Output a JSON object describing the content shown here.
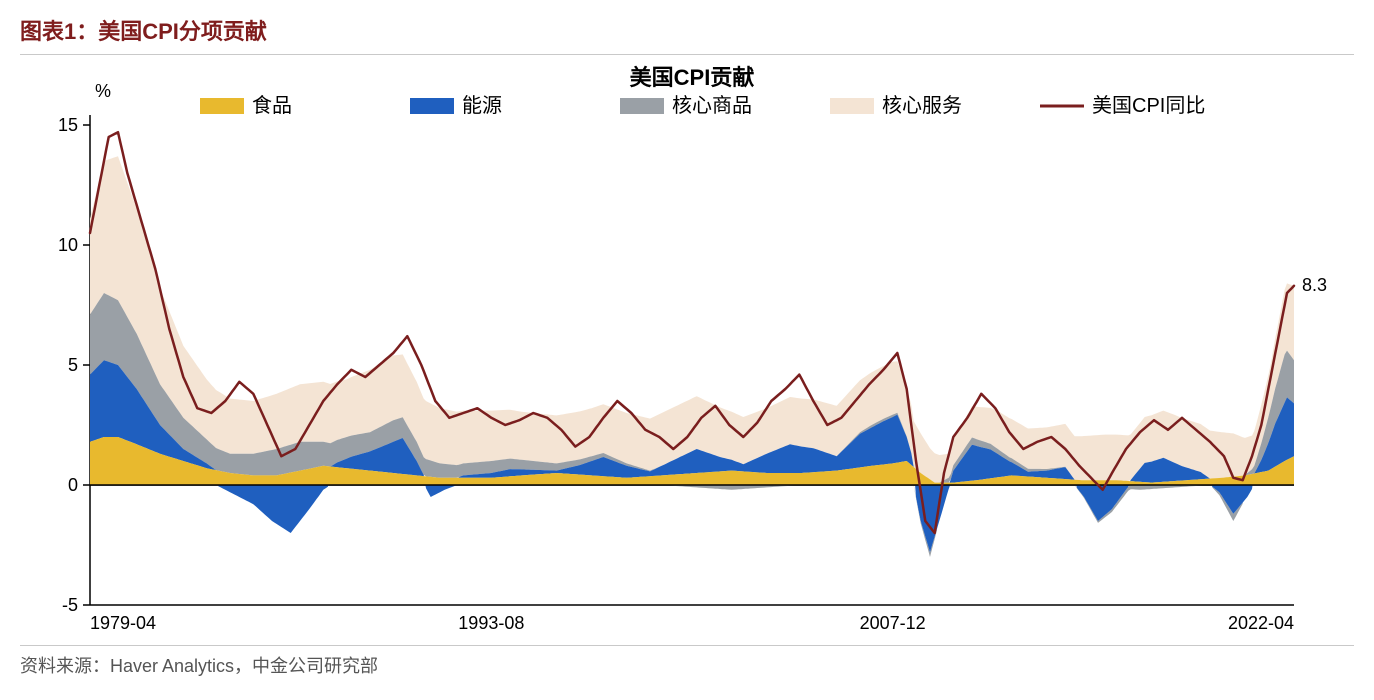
{
  "figure": {
    "title": "图表1：美国CPI分项贡献",
    "title_color": "#7f1d1d",
    "source": "资料来源：Haver Analytics，中金公司研究部"
  },
  "chart": {
    "type": "stacked-area-with-line",
    "title": "美国CPI贡献",
    "y_unit_label": "%",
    "ylim": [
      -5,
      15
    ],
    "yticks": [
      -5,
      0,
      5,
      10,
      15
    ],
    "x_start": "1979-04",
    "x_end": "2022-04",
    "x_tick_labels": [
      "1979-04",
      "1993-08",
      "2007-12",
      "2022-04"
    ],
    "x_tick_positions": [
      0,
      172,
      344,
      516
    ],
    "n_points": 517,
    "end_label": "8.3",
    "background_color": "#ffffff",
    "axis_color": "#000000",
    "tick_color": "#000000",
    "legend": {
      "items": [
        {
          "key": "food",
          "label": "食品",
          "swatch": "area",
          "color": "#e8b92e"
        },
        {
          "key": "energy",
          "label": "能源",
          "swatch": "area",
          "color": "#1f5fbf"
        },
        {
          "key": "core_goods",
          "label": "核心商品",
          "swatch": "area",
          "color": "#9aa0a6"
        },
        {
          "key": "core_services",
          "label": "核心服务",
          "swatch": "area",
          "color": "#f4e4d4"
        },
        {
          "key": "cpi_line",
          "label": "美国CPI同比",
          "swatch": "line",
          "color": "#7a1e1e"
        }
      ],
      "font_size": 20
    },
    "series": {
      "food": {
        "color": "#e8b92e",
        "breakpoints": [
          [
            0,
            1.8
          ],
          [
            6,
            2.0
          ],
          [
            12,
            2.0
          ],
          [
            20,
            1.7
          ],
          [
            30,
            1.3
          ],
          [
            40,
            1.0
          ],
          [
            50,
            0.7
          ],
          [
            60,
            0.5
          ],
          [
            70,
            0.4
          ],
          [
            80,
            0.4
          ],
          [
            90,
            0.6
          ],
          [
            100,
            0.8
          ],
          [
            110,
            0.7
          ],
          [
            120,
            0.6
          ],
          [
            130,
            0.5
          ],
          [
            140,
            0.4
          ],
          [
            150,
            0.3
          ],
          [
            160,
            0.3
          ],
          [
            172,
            0.3
          ],
          [
            185,
            0.4
          ],
          [
            200,
            0.5
          ],
          [
            215,
            0.4
          ],
          [
            230,
            0.3
          ],
          [
            245,
            0.4
          ],
          [
            260,
            0.5
          ],
          [
            275,
            0.6
          ],
          [
            290,
            0.5
          ],
          [
            305,
            0.5
          ],
          [
            320,
            0.6
          ],
          [
            335,
            0.8
          ],
          [
            344,
            0.9
          ],
          [
            350,
            1.0
          ],
          [
            356,
            0.5
          ],
          [
            362,
            0.1
          ],
          [
            370,
            0.1
          ],
          [
            380,
            0.2
          ],
          [
            395,
            0.4
          ],
          [
            410,
            0.3
          ],
          [
            425,
            0.2
          ],
          [
            440,
            0.2
          ],
          [
            455,
            0.1
          ],
          [
            470,
            0.2
          ],
          [
            485,
            0.3
          ],
          [
            495,
            0.4
          ],
          [
            505,
            0.6
          ],
          [
            512,
            1.0
          ],
          [
            516,
            1.2
          ]
        ]
      },
      "energy": {
        "color": "#1f5fbf",
        "breakpoints": [
          [
            0,
            2.8
          ],
          [
            6,
            3.2
          ],
          [
            12,
            3.0
          ],
          [
            20,
            2.3
          ],
          [
            30,
            1.2
          ],
          [
            40,
            0.5
          ],
          [
            50,
            0.2
          ],
          [
            60,
            -0.3
          ],
          [
            70,
            -0.8
          ],
          [
            78,
            -1.5
          ],
          [
            86,
            -2.0
          ],
          [
            94,
            -1.0
          ],
          [
            100,
            -0.2
          ],
          [
            106,
            0.2
          ],
          [
            112,
            0.5
          ],
          [
            120,
            0.8
          ],
          [
            128,
            1.2
          ],
          [
            134,
            1.5
          ],
          [
            140,
            0.6
          ],
          [
            146,
            -0.5
          ],
          [
            152,
            -0.2
          ],
          [
            160,
            0.1
          ],
          [
            172,
            0.2
          ],
          [
            180,
            0.3
          ],
          [
            190,
            0.2
          ],
          [
            200,
            0.1
          ],
          [
            210,
            0.4
          ],
          [
            220,
            0.8
          ],
          [
            230,
            0.5
          ],
          [
            240,
            0.2
          ],
          [
            250,
            0.6
          ],
          [
            260,
            1.0
          ],
          [
            270,
            0.6
          ],
          [
            280,
            0.3
          ],
          [
            290,
            0.8
          ],
          [
            300,
            1.2
          ],
          [
            310,
            1.0
          ],
          [
            320,
            0.6
          ],
          [
            330,
            1.4
          ],
          [
            340,
            1.8
          ],
          [
            346,
            2.0
          ],
          [
            352,
            0.5
          ],
          [
            356,
            -1.5
          ],
          [
            360,
            -2.8
          ],
          [
            364,
            -1.5
          ],
          [
            370,
            0.5
          ],
          [
            378,
            1.5
          ],
          [
            386,
            1.2
          ],
          [
            394,
            0.6
          ],
          [
            402,
            0.2
          ],
          [
            410,
            0.3
          ],
          [
            418,
            0.5
          ],
          [
            426,
            -0.5
          ],
          [
            432,
            -1.5
          ],
          [
            438,
            -1.0
          ],
          [
            444,
            -0.2
          ],
          [
            452,
            0.8
          ],
          [
            460,
            1.0
          ],
          [
            468,
            0.6
          ],
          [
            476,
            0.3
          ],
          [
            484,
            -0.3
          ],
          [
            490,
            -1.2
          ],
          [
            496,
            -0.5
          ],
          [
            502,
            0.5
          ],
          [
            508,
            1.8
          ],
          [
            513,
            2.6
          ],
          [
            516,
            2.2
          ]
        ]
      },
      "core_goods": {
        "color": "#9aa0a6",
        "breakpoints": [
          [
            0,
            2.5
          ],
          [
            6,
            2.8
          ],
          [
            12,
            2.7
          ],
          [
            20,
            2.3
          ],
          [
            30,
            1.7
          ],
          [
            40,
            1.3
          ],
          [
            50,
            1.0
          ],
          [
            60,
            0.8
          ],
          [
            70,
            0.9
          ],
          [
            80,
            1.1
          ],
          [
            90,
            1.2
          ],
          [
            100,
            1.0
          ],
          [
            110,
            0.9
          ],
          [
            120,
            0.8
          ],
          [
            130,
            0.9
          ],
          [
            140,
            0.8
          ],
          [
            150,
            0.6
          ],
          [
            160,
            0.5
          ],
          [
            172,
            0.5
          ],
          [
            185,
            0.4
          ],
          [
            200,
            0.3
          ],
          [
            215,
            0.2
          ],
          [
            230,
            0.1
          ],
          [
            245,
            0.0
          ],
          [
            260,
            -0.1
          ],
          [
            275,
            -0.2
          ],
          [
            290,
            -0.1
          ],
          [
            305,
            0.0
          ],
          [
            320,
            0.0
          ],
          [
            335,
            0.1
          ],
          [
            344,
            0.1
          ],
          [
            352,
            0.0
          ],
          [
            360,
            -0.2
          ],
          [
            368,
            0.2
          ],
          [
            378,
            0.3
          ],
          [
            390,
            0.2
          ],
          [
            405,
            0.1
          ],
          [
            420,
            0.0
          ],
          [
            435,
            -0.1
          ],
          [
            450,
            -0.2
          ],
          [
            465,
            -0.1
          ],
          [
            480,
            0.0
          ],
          [
            490,
            -0.3
          ],
          [
            498,
            0.2
          ],
          [
            506,
            1.2
          ],
          [
            512,
            2.0
          ],
          [
            516,
            1.8
          ]
        ]
      },
      "core_services": {
        "color": "#f4e4d4",
        "breakpoints": [
          [
            0,
            4.0
          ],
          [
            6,
            5.5
          ],
          [
            12,
            6.0
          ],
          [
            20,
            5.2
          ],
          [
            30,
            4.0
          ],
          [
            40,
            3.0
          ],
          [
            50,
            2.5
          ],
          [
            60,
            2.3
          ],
          [
            70,
            2.2
          ],
          [
            80,
            2.3
          ],
          [
            90,
            2.4
          ],
          [
            100,
            2.5
          ],
          [
            110,
            2.4
          ],
          [
            120,
            2.6
          ],
          [
            130,
            2.7
          ],
          [
            140,
            2.5
          ],
          [
            150,
            2.3
          ],
          [
            160,
            2.2
          ],
          [
            172,
            2.1
          ],
          [
            185,
            2.0
          ],
          [
            200,
            2.0
          ],
          [
            215,
            2.0
          ],
          [
            230,
            2.1
          ],
          [
            245,
            2.2
          ],
          [
            260,
            2.2
          ],
          [
            275,
            2.0
          ],
          [
            290,
            1.9
          ],
          [
            305,
            2.0
          ],
          [
            320,
            2.1
          ],
          [
            335,
            2.2
          ],
          [
            344,
            2.2
          ],
          [
            352,
            2.0
          ],
          [
            360,
            1.3
          ],
          [
            368,
            1.0
          ],
          [
            378,
            1.3
          ],
          [
            390,
            1.6
          ],
          [
            405,
            1.7
          ],
          [
            420,
            1.8
          ],
          [
            435,
            1.9
          ],
          [
            450,
            1.9
          ],
          [
            465,
            2.0
          ],
          [
            480,
            2.0
          ],
          [
            490,
            1.8
          ],
          [
            498,
            1.4
          ],
          [
            506,
            1.8
          ],
          [
            512,
            2.7
          ],
          [
            516,
            3.1
          ]
        ]
      },
      "cpi_line": {
        "color": "#7a1e1e",
        "width": 2.5,
        "breakpoints": [
          [
            0,
            10.5
          ],
          [
            4,
            12.5
          ],
          [
            8,
            14.5
          ],
          [
            12,
            14.7
          ],
          [
            16,
            13.0
          ],
          [
            22,
            11.0
          ],
          [
            28,
            9.0
          ],
          [
            34,
            6.5
          ],
          [
            40,
            4.5
          ],
          [
            46,
            3.2
          ],
          [
            52,
            3.0
          ],
          [
            58,
            3.5
          ],
          [
            64,
            4.3
          ],
          [
            70,
            3.8
          ],
          [
            76,
            2.5
          ],
          [
            82,
            1.2
          ],
          [
            88,
            1.5
          ],
          [
            94,
            2.5
          ],
          [
            100,
            3.5
          ],
          [
            106,
            4.2
          ],
          [
            112,
            4.8
          ],
          [
            118,
            4.5
          ],
          [
            124,
            5.0
          ],
          [
            130,
            5.5
          ],
          [
            136,
            6.2
          ],
          [
            142,
            5.0
          ],
          [
            148,
            3.5
          ],
          [
            154,
            2.8
          ],
          [
            160,
            3.0
          ],
          [
            166,
            3.2
          ],
          [
            172,
            2.8
          ],
          [
            178,
            2.5
          ],
          [
            184,
            2.7
          ],
          [
            190,
            3.0
          ],
          [
            196,
            2.8
          ],
          [
            202,
            2.3
          ],
          [
            208,
            1.6
          ],
          [
            214,
            2.0
          ],
          [
            220,
            2.8
          ],
          [
            226,
            3.5
          ],
          [
            232,
            3.0
          ],
          [
            238,
            2.3
          ],
          [
            244,
            2.0
          ],
          [
            250,
            1.5
          ],
          [
            256,
            2.0
          ],
          [
            262,
            2.8
          ],
          [
            268,
            3.3
          ],
          [
            274,
            2.5
          ],
          [
            280,
            2.0
          ],
          [
            286,
            2.6
          ],
          [
            292,
            3.5
          ],
          [
            298,
            4.0
          ],
          [
            304,
            4.6
          ],
          [
            310,
            3.5
          ],
          [
            316,
            2.5
          ],
          [
            322,
            2.8
          ],
          [
            328,
            3.5
          ],
          [
            334,
            4.2
          ],
          [
            340,
            4.8
          ],
          [
            346,
            5.5
          ],
          [
            350,
            4.0
          ],
          [
            354,
            1.0
          ],
          [
            358,
            -1.5
          ],
          [
            362,
            -2.0
          ],
          [
            366,
            0.5
          ],
          [
            370,
            2.0
          ],
          [
            376,
            2.8
          ],
          [
            382,
            3.8
          ],
          [
            388,
            3.2
          ],
          [
            394,
            2.2
          ],
          [
            400,
            1.5
          ],
          [
            406,
            1.8
          ],
          [
            412,
            2.0
          ],
          [
            418,
            1.5
          ],
          [
            424,
            0.8
          ],
          [
            430,
            0.2
          ],
          [
            434,
            -0.2
          ],
          [
            438,
            0.5
          ],
          [
            444,
            1.5
          ],
          [
            450,
            2.2
          ],
          [
            456,
            2.7
          ],
          [
            462,
            2.3
          ],
          [
            468,
            2.8
          ],
          [
            474,
            2.3
          ],
          [
            480,
            1.8
          ],
          [
            486,
            1.2
          ],
          [
            490,
            0.3
          ],
          [
            494,
            0.2
          ],
          [
            498,
            1.2
          ],
          [
            502,
            2.5
          ],
          [
            506,
            4.5
          ],
          [
            510,
            6.5
          ],
          [
            513,
            8.0
          ],
          [
            516,
            8.3
          ]
        ]
      }
    }
  }
}
